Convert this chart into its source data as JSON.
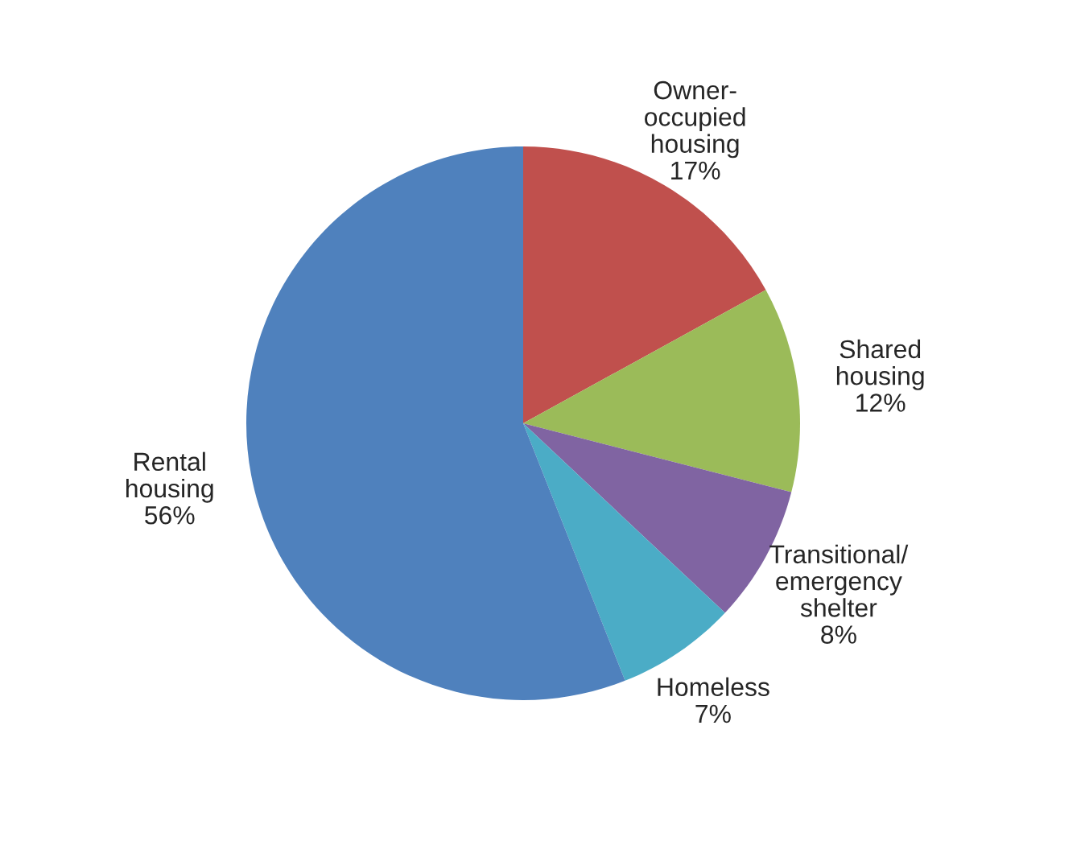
{
  "chart_data": {
    "type": "pie",
    "categories": [
      "Owner-\noccupied\nhousing",
      "Shared\nhousing",
      "Transitional/\nemergency\nshelter",
      "Homeless",
      "Rental\nhousing"
    ],
    "values": [
      17,
      12,
      8,
      7,
      56
    ],
    "value_labels": [
      "17%",
      "12%",
      "8%",
      "7%",
      "56%"
    ],
    "colors": [
      "#c0504d",
      "#9bbb59",
      "#8064a2",
      "#4bacc6",
      "#4f81bd"
    ],
    "legend": false
  }
}
